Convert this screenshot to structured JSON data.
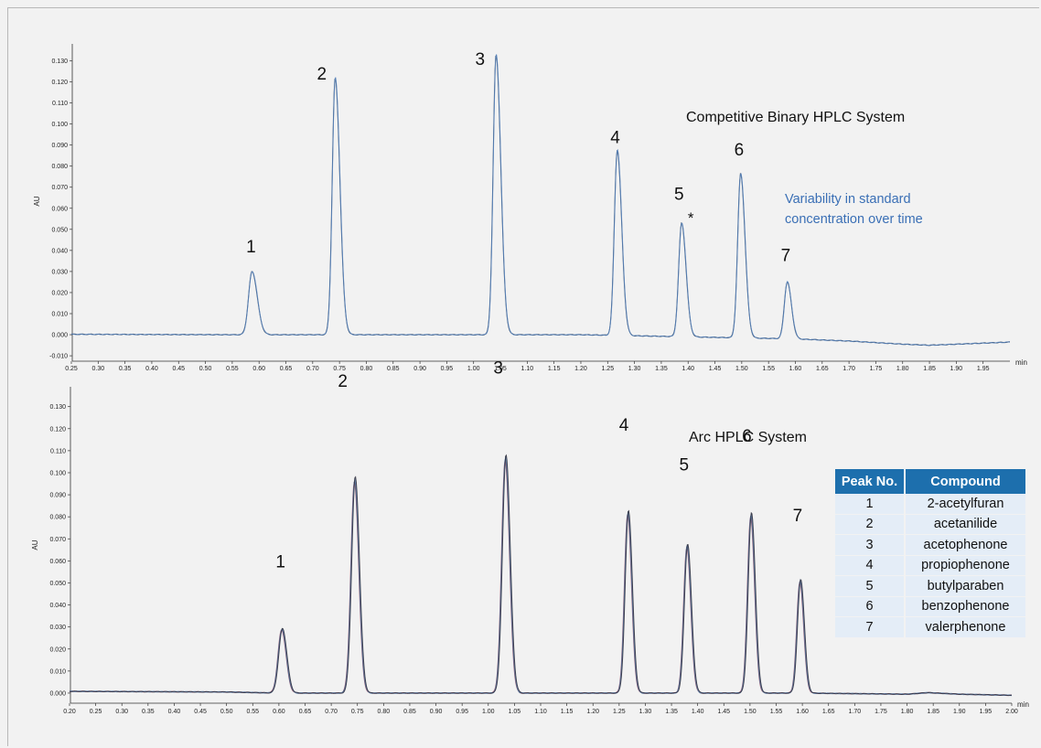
{
  "chart_data": [
    {
      "type": "line",
      "title": "Competitive Binary HPLC System",
      "annotation": "Variability in standard concentration over time",
      "annotation_lines": [
        "Variability in standard",
        "concentration over time"
      ],
      "annotation_color": "#3a6fb5",
      "ylabel": "AU",
      "xlabel": "min",
      "xlim": [
        0.25,
        2.0
      ],
      "ylim": [
        -0.013,
        0.138
      ],
      "x_ticks": [
        0.25,
        0.3,
        0.35,
        0.4,
        0.45,
        0.5,
        0.55,
        0.6,
        0.65,
        0.7,
        0.75,
        0.8,
        0.85,
        0.9,
        0.95,
        1.0,
        1.05,
        1.1,
        1.15,
        1.2,
        1.25,
        1.3,
        1.35,
        1.4,
        1.45,
        1.5,
        1.55,
        1.6,
        1.65,
        1.7,
        1.75,
        1.8,
        1.85,
        1.9,
        1.95
      ],
      "x_tick_labels": [
        "0.25",
        "0.30",
        "0.35",
        "0.40",
        "0.45",
        "0.50",
        "0.55",
        "0.60",
        "0.65",
        "0.70",
        "0.75",
        "0.80",
        "0.85",
        "0.90",
        "0.95",
        "1.00",
        "1.05",
        "1.10",
        "1.15",
        "1.20",
        "1.25",
        "1.30",
        "1.35",
        "1.40",
        "1.45",
        "1.50",
        "1.55",
        "1.60",
        "1.65",
        "1.70",
        "1.75",
        "1.80",
        "1.85",
        "1.90",
        "1.95"
      ],
      "y_ticks": [
        -0.01,
        0.0,
        0.01,
        0.02,
        0.03,
        0.04,
        0.05,
        0.06,
        0.07,
        0.08,
        0.09,
        0.1,
        0.11,
        0.12,
        0.13
      ],
      "y_tick_labels": [
        "-0.010",
        "0.000",
        "0.010",
        "0.020",
        "0.030",
        "0.040",
        "0.050",
        "0.060",
        "0.070",
        "0.080",
        "0.090",
        "0.100",
        "0.110",
        "0.120",
        "0.130"
      ],
      "series_colors": [
        "#1f3550",
        "#5b87c2"
      ],
      "baseline": [
        [
          0.25,
          0.0002
        ],
        [
          0.55,
          0.0
        ],
        [
          0.7,
          0.0
        ],
        [
          1.0,
          0.0
        ],
        [
          1.2,
          0.0
        ],
        [
          1.4,
          -0.001
        ],
        [
          1.6,
          -0.002
        ],
        [
          1.7,
          -0.003
        ],
        [
          1.8,
          -0.0045
        ],
        [
          1.85,
          -0.005
        ],
        [
          1.9,
          -0.0045
        ],
        [
          2.0,
          -0.0035
        ]
      ],
      "peaks": [
        {
          "label": "1",
          "rt": 0.587,
          "height": 0.03,
          "width": 0.0065,
          "tail": 1.5
        },
        {
          "label": "2",
          "rt": 0.742,
          "height": 0.122,
          "width": 0.0055,
          "tail": 1.6
        },
        {
          "label": "3",
          "rt": 1.042,
          "height": 0.133,
          "width": 0.0055,
          "tail": 1.6
        },
        {
          "label": "4",
          "rt": 1.268,
          "height": 0.088,
          "width": 0.0055,
          "tail": 1.5
        },
        {
          "label": "5",
          "rt": 1.388,
          "height": 0.054,
          "width": 0.0055,
          "tail": 1.5
        },
        {
          "label": "6",
          "rt": 1.498,
          "height": 0.078,
          "width": 0.0055,
          "tail": 1.5
        },
        {
          "label": "7",
          "rt": 1.585,
          "height": 0.027,
          "width": 0.0055,
          "tail": 1.4
        }
      ],
      "peak_labels": [
        {
          "text": "1",
          "x": 0.585,
          "y": 0.039
        },
        {
          "text": "2",
          "x": 0.717,
          "y": 0.121
        },
        {
          "text": "3",
          "x": 1.012,
          "y": 0.128
        },
        {
          "text": "4",
          "x": 1.264,
          "y": 0.091
        },
        {
          "text": "5",
          "x": 1.383,
          "y": 0.064
        },
        {
          "text": "*",
          "x": 1.405,
          "y": 0.053
        },
        {
          "text": "6",
          "x": 1.495,
          "y": 0.085
        },
        {
          "text": "7",
          "x": 1.582,
          "y": 0.035
        }
      ]
    },
    {
      "type": "line",
      "title": "Arc HPLC System",
      "ylabel": "AU",
      "xlabel": "min",
      "xlim": [
        0.2,
        2.0
      ],
      "ylim": [
        -0.005,
        0.139
      ],
      "x_ticks": [
        0.2,
        0.25,
        0.3,
        0.35,
        0.4,
        0.45,
        0.5,
        0.55,
        0.6,
        0.65,
        0.7,
        0.75,
        0.8,
        0.85,
        0.9,
        0.95,
        1.0,
        1.05,
        1.1,
        1.15,
        1.2,
        1.25,
        1.3,
        1.35,
        1.4,
        1.45,
        1.5,
        1.55,
        1.6,
        1.65,
        1.7,
        1.75,
        1.8,
        1.85,
        1.9,
        1.95,
        2.0
      ],
      "x_tick_labels": [
        "0.20",
        "0.25",
        "0.30",
        "0.35",
        "0.40",
        "0.45",
        "0.50",
        "0.55",
        "0.60",
        "0.65",
        "0.70",
        "0.75",
        "0.80",
        "0.85",
        "0.90",
        "0.95",
        "1.00",
        "1.05",
        "1.10",
        "1.15",
        "1.20",
        "1.25",
        "1.30",
        "1.35",
        "1.40",
        "1.45",
        "1.50",
        "1.55",
        "1.60",
        "1.65",
        "1.70",
        "1.75",
        "1.80",
        "1.85",
        "1.90",
        "1.95",
        "2.00"
      ],
      "y_ticks": [
        0.0,
        0.01,
        0.02,
        0.03,
        0.04,
        0.05,
        0.06,
        0.07,
        0.08,
        0.09,
        0.1,
        0.11,
        0.12,
        0.13
      ],
      "y_tick_labels": [
        "0.000",
        "0.010",
        "0.020",
        "0.030",
        "0.040",
        "0.050",
        "0.060",
        "0.070",
        "0.080",
        "0.090",
        "0.100",
        "0.110",
        "0.120",
        "0.130"
      ],
      "series_colors": [
        "#a0576d",
        "#3c5a85",
        "#6f8fb8",
        "#2c2c3a"
      ],
      "baseline": [
        [
          0.2,
          0.0008
        ],
        [
          0.5,
          0.0005
        ],
        [
          0.6,
          0.0
        ],
        [
          1.6,
          0.0
        ],
        [
          1.8,
          -0.0005
        ],
        [
          1.84,
          0.0002
        ],
        [
          1.9,
          -0.0005
        ],
        [
          2.0,
          -0.001
        ]
      ],
      "peaks": [
        {
          "label": "1",
          "rt": 0.606,
          "height": 0.029,
          "width": 0.007,
          "tail": 1.2
        },
        {
          "label": "2",
          "rt": 0.745,
          "height": 0.097,
          "width": 0.0068,
          "tail": 1.2
        },
        {
          "label": "3",
          "rt": 1.033,
          "height": 0.107,
          "width": 0.0068,
          "tail": 1.2
        },
        {
          "label": "4",
          "rt": 1.267,
          "height": 0.082,
          "width": 0.0062,
          "tail": 1.2
        },
        {
          "label": "5",
          "rt": 1.38,
          "height": 0.067,
          "width": 0.0062,
          "tail": 1.2
        },
        {
          "label": "6",
          "rt": 1.502,
          "height": 0.081,
          "width": 0.0062,
          "tail": 1.2
        },
        {
          "label": "7",
          "rt": 1.596,
          "height": 0.051,
          "width": 0.006,
          "tail": 1.2
        }
      ],
      "peak_labels": [
        {
          "text": "1",
          "x": 0.603,
          "y": 0.057
        },
        {
          "text": "2",
          "x": 0.722,
          "y": 0.139
        },
        {
          "text": "3",
          "x": 1.019,
          "y": 0.145
        },
        {
          "text": "4",
          "x": 1.259,
          "y": 0.119
        },
        {
          "text": "5",
          "x": 1.374,
          "y": 0.101
        },
        {
          "text": "6",
          "x": 1.494,
          "y": 0.114
        },
        {
          "text": "7",
          "x": 1.591,
          "y": 0.078
        }
      ]
    }
  ],
  "legend_table": {
    "headers": [
      "Peak No.",
      "Compound"
    ],
    "rows": [
      [
        "1",
        "2-acetylfuran"
      ],
      [
        "2",
        "acetanilide"
      ],
      [
        "3",
        "acetophenone"
      ],
      [
        "4",
        "propiophenone"
      ],
      [
        "5",
        "butylparaben"
      ],
      [
        "6",
        "benzophenone"
      ],
      [
        "7",
        "valerphenone"
      ]
    ],
    "header_color": "#1d6fad",
    "row_color": "#e4edf7"
  }
}
